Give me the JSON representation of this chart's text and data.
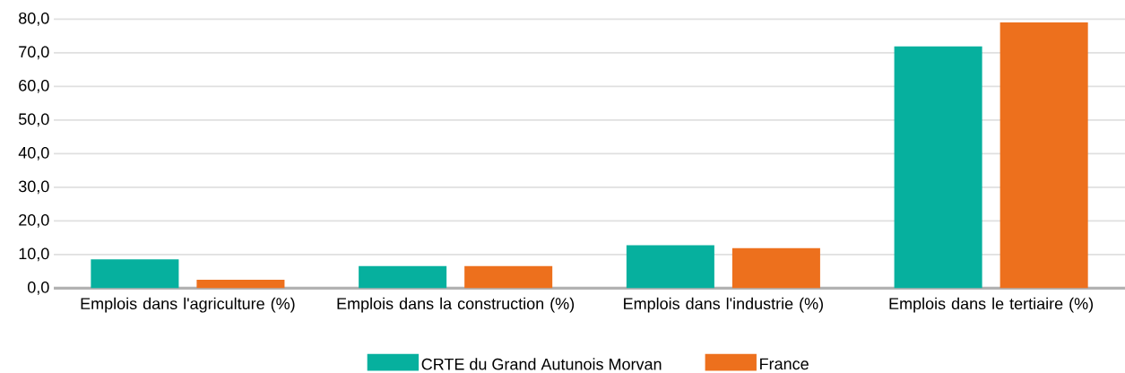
{
  "chart_data": {
    "type": "bar",
    "categories": [
      "Emplois dans l'agriculture (%)",
      "Emplois dans la construction (%)",
      "Emplois dans l'industrie (%)",
      "Emplois dans le tertiaire (%)"
    ],
    "series": [
      {
        "name": "CRTE du Grand Autunois Morvan",
        "color": "#06b09e",
        "values": [
          8.6,
          6.6,
          12.8,
          71.9
        ]
      },
      {
        "name": "France",
        "color": "#ed701d",
        "values": [
          2.5,
          6.6,
          11.9,
          79.0
        ]
      }
    ],
    "ylim": [
      0,
      80
    ],
    "yticks": [
      {
        "value": 0,
        "label": "0,0"
      },
      {
        "value": 10,
        "label": "10,0"
      },
      {
        "value": 20,
        "label": "20,0"
      },
      {
        "value": 30,
        "label": "30,0"
      },
      {
        "value": 40,
        "label": "40,0"
      },
      {
        "value": 50,
        "label": "50,0"
      },
      {
        "value": 60,
        "label": "60,0"
      },
      {
        "value": 70,
        "label": "70,0"
      },
      {
        "value": 80,
        "label": "80,0"
      }
    ],
    "grid": "y",
    "legend": "bottom"
  }
}
